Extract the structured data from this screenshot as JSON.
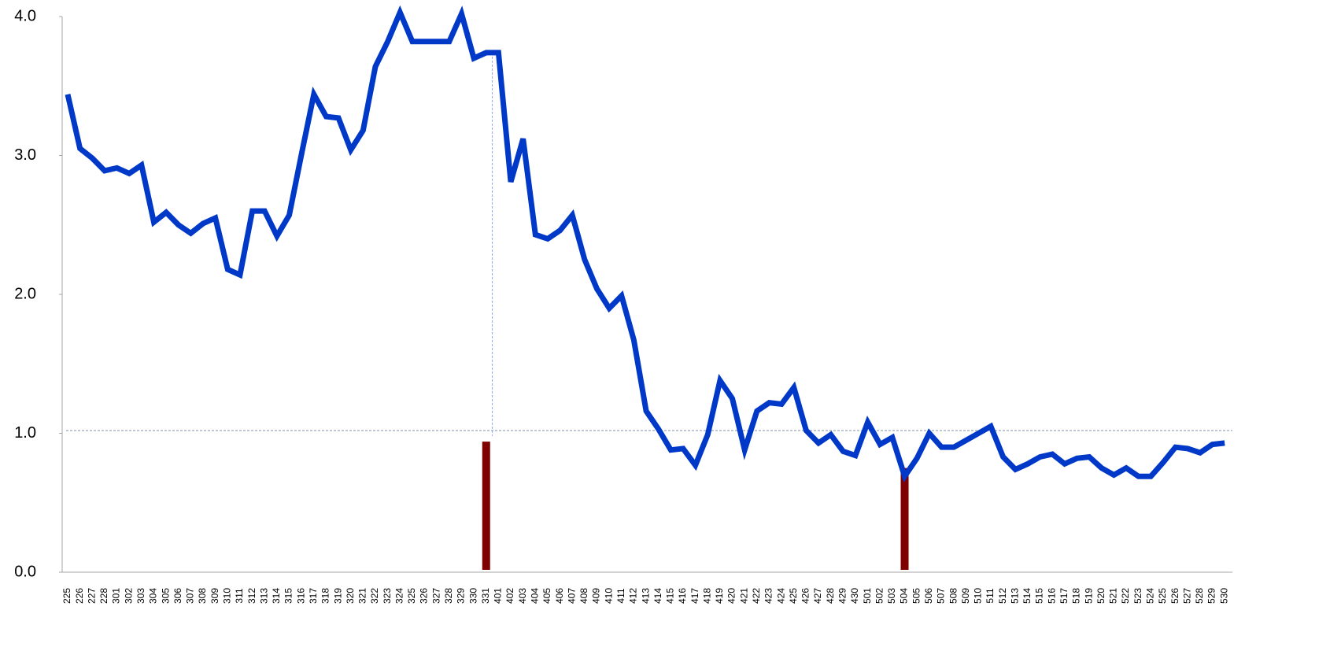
{
  "chart_data": {
    "type": "line",
    "categories": [
      "225",
      "226",
      "227",
      "228",
      "301",
      "302",
      "303",
      "304",
      "305",
      "306",
      "307",
      "308",
      "309",
      "310",
      "311",
      "312",
      "313",
      "314",
      "315",
      "316",
      "317",
      "318",
      "319",
      "320",
      "321",
      "322",
      "323",
      "324",
      "325",
      "326",
      "327",
      "328",
      "329",
      "330",
      "331",
      "401",
      "402",
      "403",
      "404",
      "405",
      "406",
      "407",
      "408",
      "409",
      "410",
      "411",
      "412",
      "413",
      "414",
      "415",
      "416",
      "417",
      "418",
      "419",
      "420",
      "421",
      "422",
      "423",
      "424",
      "425",
      "426",
      "427",
      "428",
      "429",
      "430",
      "501",
      "502",
      "503",
      "504",
      "505",
      "506",
      "507",
      "508",
      "509",
      "510",
      "511",
      "512",
      "513",
      "514",
      "515",
      "516",
      "517",
      "518",
      "519",
      "520",
      "521",
      "522",
      "523",
      "524",
      "525",
      "526",
      "527",
      "528",
      "529",
      "530"
    ],
    "series": [
      {
        "type": "line",
        "color": "#0038c8",
        "values": [
          3.44,
          3.05,
          2.98,
          2.89,
          2.91,
          2.87,
          2.93,
          2.52,
          2.59,
          2.5,
          2.44,
          2.51,
          2.55,
          2.18,
          2.14,
          2.6,
          2.6,
          2.42,
          2.57,
          3.01,
          3.44,
          3.28,
          3.27,
          3.04,
          3.18,
          3.64,
          3.82,
          4.03,
          3.82,
          3.82,
          3.82,
          3.82,
          4.02,
          3.7,
          3.74,
          3.74,
          2.81,
          3.12,
          2.43,
          2.4,
          2.46,
          2.57,
          2.25,
          2.04,
          1.9,
          1.99,
          1.67,
          1.16,
          1.03,
          0.88,
          0.89,
          0.77,
          0.99,
          1.38,
          1.25,
          0.88,
          1.16,
          1.22,
          1.21,
          1.33,
          1.02,
          0.93,
          0.99,
          0.87,
          0.84,
          1.08,
          0.92,
          0.97,
          0.69,
          0.82,
          1.0,
          0.9,
          0.9,
          0.95,
          1.0,
          1.05,
          0.83,
          0.74,
          0.78,
          0.83,
          0.85,
          0.78,
          0.82,
          0.83,
          0.75,
          0.7,
          0.75,
          0.69,
          0.69,
          0.79,
          0.9,
          0.89,
          0.86,
          0.92,
          0.93
        ]
      },
      {
        "type": "bar",
        "color": "#800000",
        "values": [
          null,
          null,
          null,
          null,
          null,
          null,
          null,
          null,
          null,
          null,
          null,
          null,
          null,
          null,
          null,
          null,
          null,
          null,
          null,
          null,
          null,
          null,
          null,
          null,
          null,
          null,
          null,
          null,
          null,
          null,
          null,
          null,
          null,
          null,
          0.94,
          null,
          null,
          null,
          null,
          null,
          null,
          null,
          null,
          null,
          null,
          null,
          null,
          null,
          null,
          null,
          null,
          null,
          null,
          null,
          null,
          null,
          null,
          null,
          null,
          null,
          null,
          null,
          null,
          null,
          null,
          null,
          null,
          null,
          0.75,
          null,
          null,
          null,
          null,
          null,
          null,
          null,
          null,
          null,
          null,
          null,
          null,
          null,
          null,
          null,
          null,
          null,
          null,
          null,
          null,
          null,
          null,
          null,
          null,
          null,
          null
        ]
      }
    ],
    "ylim": [
      0,
      4
    ],
    "yticks": [
      {
        "value": 0,
        "label": "0.0"
      },
      {
        "value": 1,
        "label": "1.0"
      },
      {
        "value": 2,
        "label": "2.0"
      },
      {
        "value": 3,
        "label": "3.0"
      },
      {
        "value": 4,
        "label": "4.0"
      }
    ],
    "reference_line": 1.02,
    "vertical_line": {
      "x_index": 34.5,
      "from": 3.74,
      "to": 0.98
    }
  }
}
